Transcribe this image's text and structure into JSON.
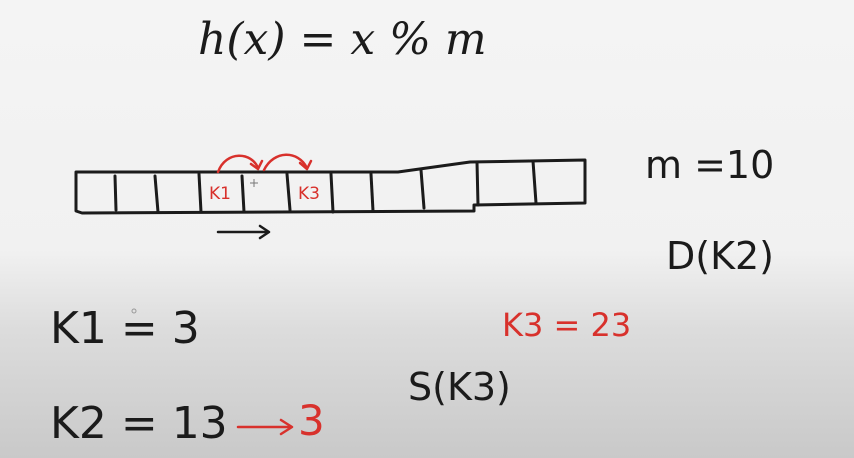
{
  "formula": "h(x) = x % m",
  "m_value": "m =10",
  "delete_op": "D(K2)",
  "search_op": "S(K3)",
  "keys": {
    "k1": "K1 = 3",
    "k2": "K2 = 13",
    "k2_result": "3",
    "k3": "K3 = 23"
  },
  "table": {
    "slot_k1": "K1",
    "slot_k3": "K3"
  },
  "colors": {
    "ink": "#1b1b1b",
    "accent": "#d8312c"
  }
}
